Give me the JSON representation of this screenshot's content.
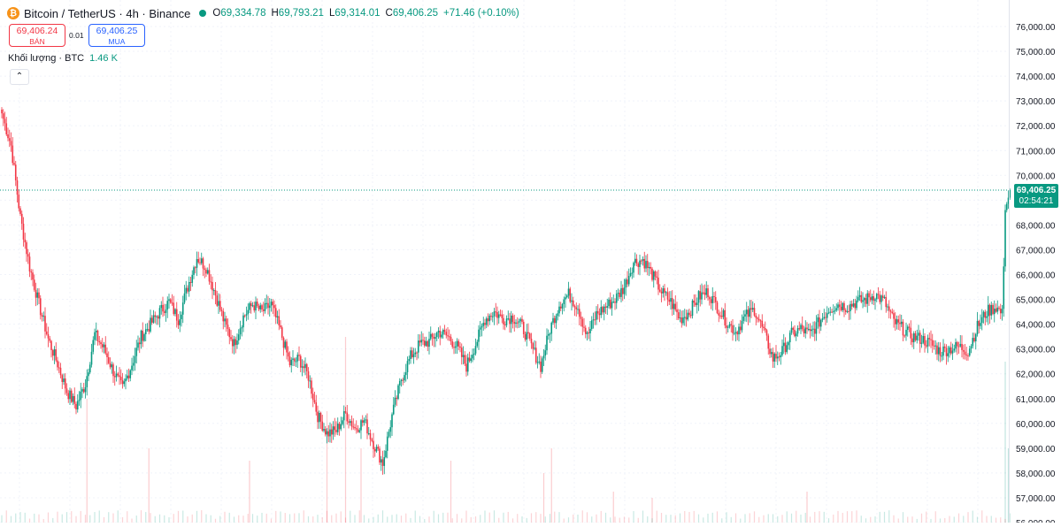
{
  "header": {
    "coin_icon": "bitcoin-icon",
    "coin_glyph": "₿",
    "title": "Bitcoin / TetherUS · 4h · Binance",
    "status_color": "#089981",
    "o_label": "O",
    "o_value": "69,334.78",
    "h_label": "H",
    "h_value": "69,793.21",
    "l_label": "L",
    "l_value": "69,314.01",
    "c_label": "C",
    "c_value": "69,406.25",
    "change": "+71.46 (+0.10%)"
  },
  "trade": {
    "sell_price": "69,406.24",
    "sell_label": "BÁN",
    "spread": "0.01",
    "buy_price": "69,406.25",
    "buy_label": "MUA"
  },
  "volume_legend": {
    "label": "Khối lượng · BTC",
    "value": "1.46 K"
  },
  "collapse_icon": "chevron-up-icon",
  "collapse_glyph": "⌃",
  "price_badge": {
    "price": "69,406.25",
    "countdown": "02:54:21",
    "color": "#089981"
  },
  "colors": {
    "up": "#089981",
    "down": "#f23645",
    "grid": "#f0f3fa"
  },
  "chart_data": {
    "type": "candlestick",
    "title": "Bitcoin / TetherUS · 4h · Binance",
    "ylim": [
      56000,
      76300
    ],
    "y_ticks": [
      "76,000.00",
      "75,000.00",
      "74,000.00",
      "73,000.00",
      "72,000.00",
      "71,000.00",
      "70,000.00",
      "69,000.00",
      "68,000.00",
      "67,000.00",
      "66,000.00",
      "65,000.00",
      "64,000.00",
      "63,000.00",
      "62,000.00",
      "61,000.00",
      "60,000.00",
      "59,000.00",
      "58,000.00",
      "57,000.00",
      "56,000.00"
    ],
    "last_price": 69406.25,
    "anchors": [
      [
        0,
        72500
      ],
      [
        6,
        71200
      ],
      [
        12,
        68300
      ],
      [
        18,
        66300
      ],
      [
        24,
        64800
      ],
      [
        30,
        63400
      ],
      [
        36,
        62400
      ],
      [
        42,
        61300
      ],
      [
        48,
        60700
      ],
      [
        54,
        61600
      ],
      [
        60,
        63600
      ],
      [
        66,
        63000
      ],
      [
        72,
        62100
      ],
      [
        78,
        61400
      ],
      [
        84,
        62400
      ],
      [
        90,
        63500
      ],
      [
        96,
        64000
      ],
      [
        102,
        64500
      ],
      [
        108,
        64900
      ],
      [
        114,
        64200
      ],
      [
        120,
        65500
      ],
      [
        126,
        66700
      ],
      [
        132,
        66300
      ],
      [
        138,
        65200
      ],
      [
        144,
        64000
      ],
      [
        150,
        63200
      ],
      [
        156,
        64300
      ],
      [
        162,
        64800
      ],
      [
        168,
        64500
      ],
      [
        174,
        64800
      ],
      [
        180,
        63700
      ],
      [
        186,
        62400
      ],
      [
        192,
        62600
      ],
      [
        198,
        61900
      ],
      [
        204,
        60300
      ],
      [
        210,
        59600
      ],
      [
        216,
        59700
      ],
      [
        222,
        60400
      ],
      [
        228,
        59800
      ],
      [
        234,
        60100
      ],
      [
        240,
        59200
      ],
      [
        246,
        58400
      ],
      [
        252,
        60300
      ],
      [
        258,
        61800
      ],
      [
        264,
        62700
      ],
      [
        270,
        63200
      ],
      [
        276,
        63300
      ],
      [
        282,
        63700
      ],
      [
        288,
        63500
      ],
      [
        294,
        63100
      ],
      [
        300,
        62300
      ],
      [
        306,
        63200
      ],
      [
        312,
        64200
      ],
      [
        318,
        64500
      ],
      [
        324,
        64200
      ],
      [
        330,
        64300
      ],
      [
        336,
        63900
      ],
      [
        342,
        63100
      ],
      [
        348,
        62300
      ],
      [
        354,
        63800
      ],
      [
        360,
        64800
      ],
      [
        366,
        65200
      ],
      [
        372,
        64700
      ],
      [
        378,
        63500
      ],
      [
        384,
        64400
      ],
      [
        390,
        64700
      ],
      [
        396,
        65000
      ],
      [
        402,
        65500
      ],
      [
        408,
        66500
      ],
      [
        414,
        66600
      ],
      [
        420,
        66000
      ],
      [
        426,
        65300
      ],
      [
        432,
        64900
      ],
      [
        438,
        64200
      ],
      [
        444,
        64500
      ],
      [
        450,
        65100
      ],
      [
        456,
        65300
      ],
      [
        462,
        64700
      ],
      [
        468,
        64100
      ],
      [
        474,
        63700
      ],
      [
        480,
        64300
      ],
      [
        486,
        64600
      ],
      [
        492,
        63700
      ],
      [
        498,
        62600
      ],
      [
        504,
        62900
      ],
      [
        510,
        63600
      ],
      [
        516,
        63800
      ],
      [
        522,
        63600
      ],
      [
        528,
        64100
      ],
      [
        534,
        64600
      ],
      [
        540,
        64800
      ],
      [
        546,
        64700
      ],
      [
        552,
        64900
      ],
      [
        558,
        65000
      ],
      [
        564,
        65200
      ],
      [
        570,
        64900
      ],
      [
        576,
        64100
      ],
      [
        582,
        63800
      ],
      [
        588,
        63500
      ],
      [
        594,
        63400
      ],
      [
        600,
        63200
      ],
      [
        606,
        62900
      ],
      [
        612,
        63000
      ],
      [
        618,
        63100
      ],
      [
        624,
        62900
      ],
      [
        630,
        63900
      ],
      [
        636,
        64500
      ],
      [
        642,
        64700
      ],
      [
        646,
        64400
      ],
      [
        648,
        68600
      ],
      [
        650,
        69100
      ],
      [
        651,
        69406
      ]
    ],
    "volume_spikes": [
      [
        55,
        0.2
      ],
      [
        95,
        0.12
      ],
      [
        160,
        0.1
      ],
      [
        210,
        0.18
      ],
      [
        222,
        0.3
      ],
      [
        232,
        0.12
      ],
      [
        290,
        0.1
      ],
      [
        350,
        0.08
      ],
      [
        355,
        0.12
      ],
      [
        395,
        0.05
      ],
      [
        420,
        0.04
      ],
      [
        520,
        0.05
      ],
      [
        648,
        0.26
      ],
      [
        650,
        0.12
      ]
    ]
  }
}
